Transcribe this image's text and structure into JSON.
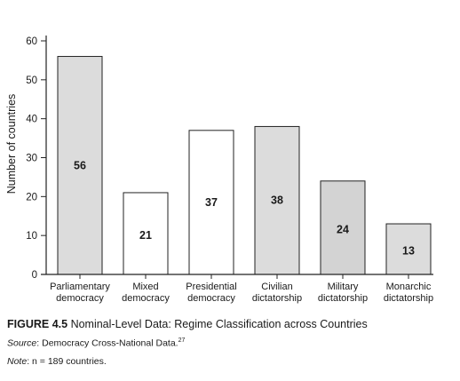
{
  "chart_data": {
    "type": "bar",
    "categories": [
      [
        "Parliamentary",
        "democracy"
      ],
      [
        "Mixed",
        "democracy"
      ],
      [
        "Presidential",
        "democracy"
      ],
      [
        "Civilian",
        "dictatorship"
      ],
      [
        "Military",
        "dictatorship"
      ],
      [
        "Monarchic",
        "dictatorship"
      ]
    ],
    "values": [
      56,
      21,
      37,
      38,
      24,
      13
    ],
    "data_labels": [
      "56",
      "21",
      "37",
      "38",
      "24",
      "13"
    ],
    "bar_colors": [
      "#dcdcdc",
      "#ffffff",
      "#ffffff",
      "#dcdcdc",
      "#d3d3d3",
      "#dcdcdc"
    ],
    "ylabel": "Number of countries",
    "ylim": [
      0,
      60
    ],
    "yticks": [
      0,
      10,
      20,
      30,
      40,
      50,
      60
    ],
    "grid": false
  },
  "caption": {
    "figure_label": "FIGURE 4.5",
    "figure_title": "Nominal-Level Data: Regime Classification across Countries",
    "source_label": "Source",
    "source_text": ": Democracy Cross-National Data.",
    "source_footnote": "27",
    "note_label": "Note",
    "note_text": ": n = 189 countries."
  }
}
